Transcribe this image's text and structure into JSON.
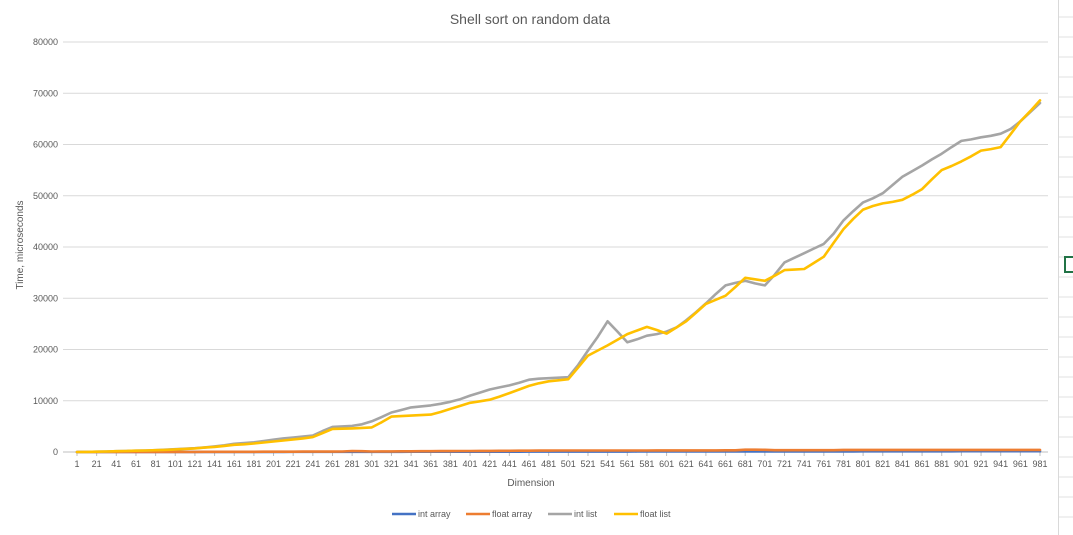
{
  "colors": {
    "int_array": "#4472C4",
    "float_array": "#ED7D31",
    "int_list": "#A5A5A5",
    "float_list": "#FFC000",
    "gridline": "#D9D9D9",
    "text": "#595959"
  },
  "chart_data": {
    "type": "line",
    "title": "Shell sort on random data",
    "xlabel": "Dimension",
    "ylabel": "Time, microseconds",
    "ylim": [
      0,
      80000
    ],
    "yticks": [
      0,
      10000,
      20000,
      30000,
      40000,
      50000,
      60000,
      70000,
      80000
    ],
    "grid": true,
    "legend_position": "bottom",
    "x": [
      1,
      11,
      21,
      31,
      41,
      51,
      61,
      71,
      81,
      91,
      101,
      111,
      121,
      131,
      141,
      151,
      161,
      171,
      181,
      191,
      201,
      211,
      221,
      231,
      241,
      251,
      261,
      271,
      281,
      291,
      301,
      311,
      321,
      331,
      341,
      351,
      361,
      371,
      381,
      391,
      401,
      411,
      421,
      431,
      441,
      451,
      461,
      471,
      481,
      491,
      501,
      511,
      521,
      531,
      541,
      551,
      561,
      571,
      581,
      591,
      601,
      611,
      621,
      631,
      641,
      651,
      661,
      671,
      681,
      691,
      701,
      711,
      721,
      731,
      741,
      751,
      761,
      771,
      781,
      791,
      801,
      811,
      821,
      831,
      841,
      851,
      861,
      871,
      881,
      891,
      901,
      911,
      921,
      931,
      941,
      951,
      961,
      971,
      981
    ],
    "xtick_labels": [
      "1",
      "21",
      "41",
      "61",
      "81",
      "101",
      "121",
      "141",
      "161",
      "181",
      "201",
      "221",
      "241",
      "261",
      "281",
      "301",
      "321",
      "341",
      "361",
      "381",
      "401",
      "421",
      "441",
      "461",
      "481",
      "501",
      "521",
      "541",
      "561",
      "581",
      "601",
      "621",
      "641",
      "661",
      "681",
      "701",
      "721",
      "741",
      "761",
      "781",
      "801",
      "821",
      "841",
      "861",
      "881",
      "901",
      "921",
      "941",
      "961",
      "981"
    ],
    "series": [
      {
        "name": "int array",
        "values": [
          0,
          0,
          0,
          0,
          0,
          0,
          0,
          0,
          0,
          0,
          10,
          10,
          10,
          10,
          10,
          10,
          20,
          20,
          20,
          20,
          20,
          20,
          30,
          30,
          30,
          30,
          30,
          30,
          40,
          40,
          40,
          40,
          40,
          40,
          50,
          50,
          50,
          50,
          50,
          50,
          60,
          60,
          60,
          60,
          60,
          60,
          70,
          70,
          70,
          70,
          70,
          70,
          80,
          80,
          80,
          80,
          80,
          90,
          90,
          90,
          90,
          90,
          90,
          100,
          100,
          100,
          100,
          100,
          100,
          110,
          110,
          110,
          110,
          110,
          120,
          120,
          120,
          120,
          120,
          120,
          130,
          130,
          130,
          130,
          130,
          140,
          140,
          140,
          140,
          140,
          150,
          150,
          150,
          150,
          150,
          160,
          160,
          160,
          160
        ]
      },
      {
        "name": "float array",
        "values": [
          0,
          0,
          0,
          0,
          0,
          0,
          10,
          10,
          10,
          10,
          20,
          20,
          20,
          30,
          30,
          30,
          40,
          40,
          40,
          50,
          50,
          60,
          60,
          70,
          70,
          80,
          80,
          90,
          200,
          150,
          100,
          110,
          120,
          130,
          140,
          150,
          160,
          170,
          180,
          190,
          200,
          210,
          220,
          230,
          240,
          250,
          260,
          270,
          280,
          290,
          300,
          300,
          300,
          300,
          300,
          300,
          300,
          300,
          300,
          310,
          310,
          310,
          310,
          320,
          320,
          320,
          330,
          330,
          450,
          440,
          430,
          360,
          350,
          350,
          350,
          350,
          350,
          350,
          400,
          400,
          400,
          400,
          400,
          400,
          400,
          400,
          400,
          400,
          400,
          400,
          400,
          400,
          400,
          400,
          400,
          400,
          400,
          400,
          400
        ]
      },
      {
        "name": "int list",
        "values": [
          0,
          20,
          50,
          100,
          150,
          200,
          250,
          300,
          350,
          450,
          550,
          650,
          750,
          900,
          1100,
          1300,
          1600,
          1750,
          1900,
          2150,
          2400,
          2650,
          2800,
          3000,
          3200,
          4100,
          4900,
          5000,
          5100,
          5400,
          6000,
          6800,
          7700,
          8200,
          8700,
          8900,
          9100,
          9400,
          9800,
          10300,
          11000,
          11600,
          12200,
          12600,
          13000,
          13500,
          14100,
          14300,
          14400,
          14500,
          14600,
          17000,
          19800,
          22500,
          25500,
          23500,
          21400,
          22000,
          22700,
          23000,
          23500,
          24300,
          25700,
          27300,
          29000,
          30800,
          32500,
          33000,
          33400,
          32900,
          32500,
          34600,
          37000,
          37900,
          38800,
          39700,
          40600,
          42600,
          45200,
          47000,
          48700,
          49500,
          50500,
          52100,
          53700,
          54800,
          55900,
          57100,
          58200,
          59500,
          60700,
          61000,
          61400,
          61700,
          62100,
          63000,
          64500,
          66300,
          68100
        ]
      },
      {
        "name": "float list",
        "values": [
          0,
          20,
          50,
          100,
          150,
          200,
          250,
          300,
          350,
          400,
          500,
          600,
          700,
          850,
          1000,
          1200,
          1400,
          1500,
          1650,
          1850,
          2050,
          2250,
          2450,
          2650,
          2900,
          3700,
          4500,
          4550,
          4600,
          4700,
          4800,
          5800,
          6900,
          7000,
          7100,
          7200,
          7300,
          7800,
          8400,
          9000,
          9600,
          9900,
          10200,
          10800,
          11500,
          12200,
          12900,
          13400,
          13800,
          14000,
          14200,
          16500,
          18800,
          19800,
          20800,
          21900,
          23000,
          23700,
          24400,
          23800,
          23100,
          24300,
          25500,
          27200,
          28900,
          29700,
          30500,
          32200,
          34000,
          33700,
          33400,
          34400,
          35500,
          35600,
          35700,
          36900,
          38100,
          40800,
          43500,
          45500,
          47300,
          48000,
          48500,
          48800,
          49200,
          50200,
          51300,
          53200,
          55000,
          55800,
          56700,
          57700,
          58800,
          59100,
          59500,
          62000,
          64500,
          66500,
          68600
        ]
      }
    ]
  }
}
